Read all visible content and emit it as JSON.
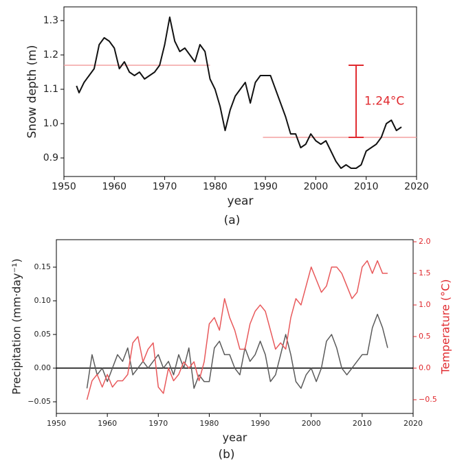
{
  "chart_data": [
    {
      "type": "line",
      "label": "(a)",
      "xlabel": "year",
      "ylabel": "Snow depth (m)",
      "xlim": [
        1950,
        2020
      ],
      "ylim": [
        0.846,
        1.34
      ],
      "xticks": [
        1950,
        1960,
        1970,
        1980,
        1990,
        2000,
        2010,
        2020
      ],
      "yticks": [
        0.9,
        {
          "value": 1,
          "label": "1.0"
        },
        1.1,
        1.2,
        1.3
      ],
      "x": [
        1952.5,
        1953,
        1954,
        1955,
        1956,
        1957,
        1958,
        1959,
        1960,
        1961,
        1962,
        1963,
        1964,
        1965,
        1966,
        1967,
        1968,
        1969,
        1970,
        1971,
        1972,
        1973,
        1974,
        1975,
        1976,
        1977,
        1978,
        1979,
        1980,
        1981,
        1982,
        1983,
        1984,
        1985,
        1986,
        1987,
        1988,
        1989,
        1990,
        1991,
        1992,
        1993,
        1994,
        1995,
        1996,
        1997,
        1998,
        1999,
        2000,
        2001,
        2002,
        2003,
        2004,
        2005,
        2006,
        2007,
        2008,
        2009,
        2010,
        2011,
        2012,
        2013,
        2014,
        2015,
        2016,
        2017
      ],
      "series": [
        {
          "color": "#111111",
          "values": [
            1.11,
            1.09,
            1.12,
            1.14,
            1.16,
            1.23,
            1.25,
            1.24,
            1.22,
            1.16,
            1.18,
            1.15,
            1.14,
            1.15,
            1.13,
            1.14,
            1.15,
            1.17,
            1.23,
            1.31,
            1.24,
            1.21,
            1.22,
            1.2,
            1.18,
            1.23,
            1.21,
            1.13,
            1.1,
            1.05,
            0.98,
            1.04,
            1.08,
            1.1,
            1.12,
            1.06,
            1.12,
            1.14,
            1.14,
            1.14,
            1.1,
            1.06,
            1.02,
            0.97,
            0.97,
            0.93,
            0.94,
            0.97,
            0.95,
            0.94,
            0.95,
            0.92,
            0.89,
            0.87,
            0.88,
            0.87,
            0.87,
            0.88,
            0.92,
            0.93,
            0.94,
            0.96,
            1.0,
            1.01,
            0.98,
            0.99
          ]
        }
      ],
      "hlines": [
        {
          "y": 1.17,
          "xmin": 1950,
          "xmax": 1979,
          "color": "#f4a0a0"
        },
        {
          "y": 0.96,
          "xmin": 1989.5,
          "xmax": 2020,
          "color": "#f4a0a0"
        }
      ],
      "annotation": {
        "text": "1.24°C",
        "x": 2008,
        "ymin": 0.96,
        "ymax": 1.17,
        "color": "#e0282d"
      }
    },
    {
      "type": "line",
      "label": "(b)",
      "xlabel": "year",
      "ylabel": "Precipitation (mm·day⁻¹)",
      "y2label": "Temperature (°C)",
      "y2color": "#e0282d",
      "xlim": [
        1950,
        2020
      ],
      "ylim": [
        -0.0673,
        0.1908
      ],
      "y2lim": [
        -0.717,
        2.033
      ],
      "xticks": [
        1950,
        1960,
        1970,
        1980,
        1990,
        2000,
        2010,
        2020
      ],
      "yticks": [
        {
          "value": -0.05,
          "label": "−0.05"
        },
        {
          "value": 0,
          "label": "0.00"
        },
        {
          "value": 0.05,
          "label": "0.05"
        },
        {
          "value": 0.1,
          "label": "0.10"
        },
        {
          "value": 0.15,
          "label": "0.15"
        }
      ],
      "y2ticks": [
        {
          "value": -0.5,
          "label": "−0.5"
        },
        {
          "value": 0,
          "label": "0.0"
        },
        0.5,
        {
          "value": 1,
          "label": "1.0"
        },
        1.5,
        {
          "value": 2,
          "label": "2.0"
        }
      ],
      "x": [
        1956,
        1957,
        1958,
        1959,
        1960,
        1961,
        1962,
        1963,
        1964,
        1965,
        1966,
        1967,
        1968,
        1969,
        1970,
        1971,
        1972,
        1973,
        1974,
        1975,
        1976,
        1977,
        1978,
        1979,
        1980,
        1981,
        1982,
        1983,
        1984,
        1985,
        1986,
        1987,
        1988,
        1989,
        1990,
        1991,
        1992,
        1993,
        1994,
        1995,
        1996,
        1997,
        1998,
        1999,
        2000,
        2001,
        2002,
        2003,
        2004,
        2005,
        2006,
        2007,
        2008,
        2009,
        2010,
        2011,
        2012,
        2013,
        2014,
        2015
      ],
      "series": [
        {
          "color": "#5a5a5a",
          "values": [
            -0.03,
            0.02,
            -0.01,
            0,
            -0.02,
            0,
            0.02,
            0.01,
            0.03,
            -0.01,
            0,
            0.01,
            0,
            0.01,
            0.02,
            0,
            0.01,
            -0.01,
            0.02,
            0,
            0.03,
            -0.03,
            -0.01,
            -0.02,
            -0.02,
            0.03,
            0.04,
            0.02,
            0.02,
            0,
            -0.01,
            0.03,
            0.01,
            0.02,
            0.04,
            0.02,
            -0.02,
            -0.01,
            0.02,
            0.05,
            0.02,
            -0.02,
            -0.03,
            -0.01,
            0,
            -0.02,
            0,
            0.04,
            0.05,
            0.03,
            0,
            -0.01,
            0,
            0.01,
            0.02,
            0.02,
            0.06,
            0.08,
            0.06,
            0.03
          ]
        },
        {
          "color": "#e8585a",
          "axis": "y2",
          "values": [
            -0.5,
            -0.2,
            -0.1,
            -0.3,
            -0.1,
            -0.3,
            -0.2,
            -0.2,
            -0.1,
            0.4,
            0.5,
            0.1,
            0.3,
            0.4,
            -0.3,
            -0.4,
            0,
            -0.2,
            -0.1,
            0.1,
            0,
            0.1,
            -0.2,
            0.1,
            0.7,
            0.8,
            0.6,
            1.1,
            0.8,
            0.6,
            0.3,
            0.3,
            0.7,
            0.9,
            1,
            0.9,
            0.6,
            0.3,
            0.4,
            0.3,
            0.8,
            1.1,
            1,
            1.3,
            1.6,
            1.4,
            1.2,
            1.3,
            1.6,
            1.6,
            1.5,
            1.3,
            1.1,
            1.2,
            1.6,
            1.7,
            1.5,
            1.7,
            1.5,
            1.5
          ]
        }
      ],
      "hlines": [
        {
          "y": 0,
          "color": "#000000"
        }
      ]
    }
  ]
}
